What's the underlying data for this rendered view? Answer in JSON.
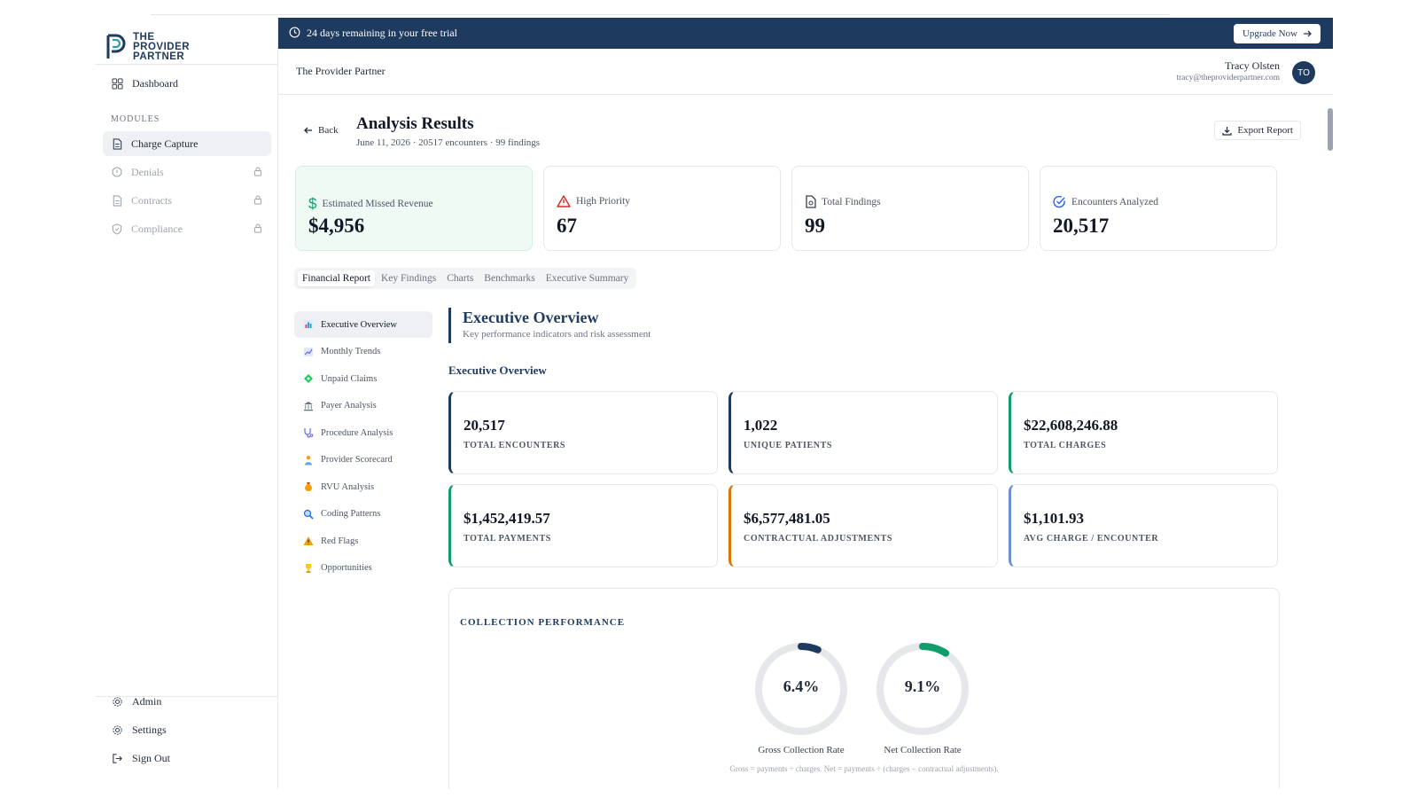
{
  "brand": {
    "line1": "THE",
    "line2": "PROVIDER",
    "line3": "PARTNER"
  },
  "sidebar": {
    "dashboard": "Dashboard",
    "modules_label": "MODULES",
    "modules": [
      {
        "label": "Charge Capture",
        "active": true,
        "locked": false
      },
      {
        "label": "Denials",
        "active": false,
        "locked": true
      },
      {
        "label": "Contracts",
        "active": false,
        "locked": true
      },
      {
        "label": "Compliance",
        "active": false,
        "locked": true
      }
    ],
    "bottom": {
      "admin": "Admin",
      "settings": "Settings",
      "signout": "Sign Out"
    }
  },
  "banner": {
    "text": "24 days remaining in your free trial",
    "upgrade": "Upgrade Now"
  },
  "header": {
    "org": "The Provider Partner",
    "user_name": "Tracy Olsten",
    "user_email": "tracy@theproviderpartner.com",
    "initials": "TO"
  },
  "page": {
    "back": "Back",
    "title": "Analysis Results",
    "subtitle": "June 11, 2026 · 20517 encounters · 99 findings",
    "export": "Export Report"
  },
  "stats": [
    {
      "label": "Estimated Missed Revenue",
      "value": "$4,956",
      "icon": "dollar-icon"
    },
    {
      "label": "High Priority",
      "value": "67",
      "icon": "warning-icon"
    },
    {
      "label": "Total Findings",
      "value": "99",
      "icon": "document-icon"
    },
    {
      "label": "Encounters Analyzed",
      "value": "20,517",
      "icon": "check-circle-icon"
    }
  ],
  "tabs": [
    "Financial Report",
    "Key Findings",
    "Charts",
    "Benchmarks",
    "Executive Summary"
  ],
  "subnav": [
    {
      "label": "Executive Overview",
      "icon": "bar-chart-icon"
    },
    {
      "label": "Monthly Trends",
      "icon": "line-chart-icon"
    },
    {
      "label": "Unpaid Claims",
      "icon": "money-icon"
    },
    {
      "label": "Payer Analysis",
      "icon": "bank-icon"
    },
    {
      "label": "Procedure Analysis",
      "icon": "stethoscope-icon"
    },
    {
      "label": "Provider Scorecard",
      "icon": "doctor-icon"
    },
    {
      "label": "RVU Analysis",
      "icon": "moneybag-icon"
    },
    {
      "label": "Coding Patterns",
      "icon": "magnifier-icon"
    },
    {
      "label": "Red Flags",
      "icon": "warning-icon"
    },
    {
      "label": "Opportunities",
      "icon": "trophy-icon"
    }
  ],
  "section": {
    "title": "Executive Overview",
    "subtitle": "Key performance indicators and risk assessment",
    "heading": "Executive Overview"
  },
  "kpis": [
    {
      "value": "20,517",
      "label": "TOTAL ENCOUNTERS",
      "color": "#1e3a5f"
    },
    {
      "value": "1,022",
      "label": "UNIQUE PATIENTS",
      "color": "#1e3a5f"
    },
    {
      "value": "$22,608,246.88",
      "label": "TOTAL CHARGES",
      "color": "#0f9d6b"
    },
    {
      "value": "$1,452,419.57",
      "label": "TOTAL PAYMENTS",
      "color": "#0f9d6b"
    },
    {
      "value": "$6,577,481.05",
      "label": "CONTRACTUAL ADJUSTMENTS",
      "color": "#d97706"
    },
    {
      "value": "$1,101.93",
      "label": "AVG CHARGE / ENCOUNTER",
      "color": "#6b8ed6"
    }
  ],
  "collection": {
    "title": "COLLECTION PERFORMANCE",
    "gauges": [
      {
        "label": "Gross Collection Rate",
        "display": "6.4%",
        "value": 6.4,
        "color": "#1e3a5f"
      },
      {
        "label": "Net Collection Rate",
        "display": "9.1%",
        "value": 9.1,
        "color": "#0f9d6b"
      }
    ],
    "footnote": "Gross = payments ÷ charges. Net = payments ÷ (charges − contractual adjustments)."
  },
  "colors": {
    "navy": "#1e3a5f",
    "green": "#0f9d6b",
    "amber": "#d97706",
    "blue": "#6b8ed6"
  }
}
